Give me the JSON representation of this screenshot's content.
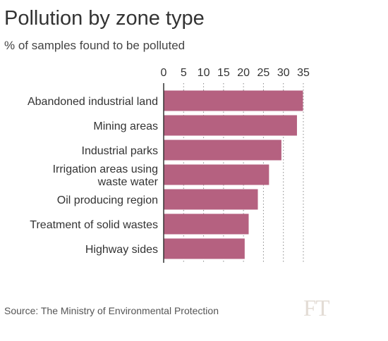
{
  "chart_data": {
    "type": "bar",
    "orientation": "horizontal",
    "title": "Pollution by zone type",
    "subtitle": "% of samples found to be polluted",
    "categories": [
      [
        "Abandoned industrial land"
      ],
      [
        "Mining areas"
      ],
      [
        "Industrial parks"
      ],
      [
        "Irrigation areas using",
        "waste water"
      ],
      [
        "Oil producing region"
      ],
      [
        "Treatment of solid wastes"
      ],
      [
        "Highway sides"
      ]
    ],
    "values": [
      34.9,
      33.4,
      29.5,
      26.4,
      23.6,
      21.3,
      20.3
    ],
    "xlim": [
      0,
      35
    ],
    "ticks": [
      0,
      5,
      10,
      15,
      20,
      25,
      30,
      35
    ],
    "tick_labels": [
      "0",
      "5",
      "10",
      "15",
      "20",
      "25",
      "30",
      "35"
    ],
    "tick_position": "top",
    "grid": true,
    "bar_color": "#b56180",
    "source": "Source: The Ministry of Environmental Protection",
    "logo": "FT"
  }
}
